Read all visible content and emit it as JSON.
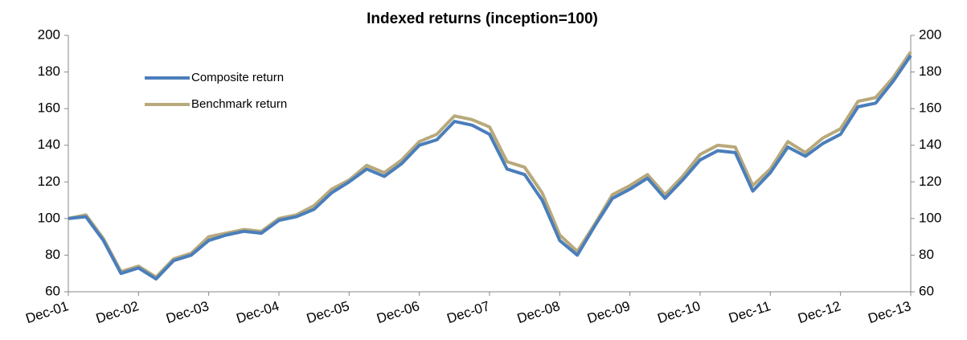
{
  "chart_data": {
    "type": "line",
    "title": "Indexed returns (inception=100)",
    "categories": [
      "Dec-01",
      null,
      null,
      null,
      "Dec-02",
      null,
      null,
      null,
      "Dec-03",
      null,
      null,
      null,
      "Dec-04",
      null,
      null,
      null,
      "Dec-05",
      null,
      null,
      null,
      "Dec-06",
      null,
      null,
      null,
      "Dec-07",
      null,
      null,
      null,
      "Dec-08",
      null,
      null,
      null,
      "Dec-09",
      null,
      null,
      null,
      "Dec-10",
      null,
      null,
      null,
      "Dec-11",
      null,
      null,
      null,
      "Dec-12",
      null,
      null,
      null,
      "Dec-13"
    ],
    "series": [
      {
        "name": "Composite return",
        "color": "#4a7ebb",
        "values": [
          100,
          101,
          88,
          70,
          73,
          67,
          77,
          80,
          88,
          91,
          93,
          92,
          99,
          101,
          105,
          114,
          120,
          127,
          123,
          130,
          140,
          143,
          153,
          151,
          146,
          127,
          124,
          110,
          88,
          80,
          96,
          111,
          116,
          122,
          111,
          121,
          132,
          137,
          136,
          115,
          125,
          139,
          134,
          141,
          146,
          161,
          163,
          175,
          189
        ]
      },
      {
        "name": "Benchmark return",
        "color": "#b8a97c",
        "values": [
          100,
          102,
          89,
          71,
          74,
          68,
          78,
          81,
          90,
          92,
          94,
          93,
          100,
          102,
          107,
          116,
          121,
          129,
          125,
          132,
          142,
          146,
          156,
          154,
          150,
          131,
          128,
          114,
          91,
          82,
          97,
          113,
          118,
          124,
          113,
          123,
          135,
          140,
          139,
          118,
          127,
          142,
          136,
          144,
          149,
          164,
          166,
          177,
          191
        ]
      }
    ],
    "ylim": [
      60,
      200
    ],
    "yticks": [
      60,
      80,
      100,
      120,
      140,
      160,
      180,
      200
    ],
    "y2lim": [
      60,
      200
    ],
    "y2ticks": [
      60,
      80,
      100,
      120,
      140,
      160,
      180,
      200
    ],
    "legend": "upper left",
    "grid": false
  }
}
